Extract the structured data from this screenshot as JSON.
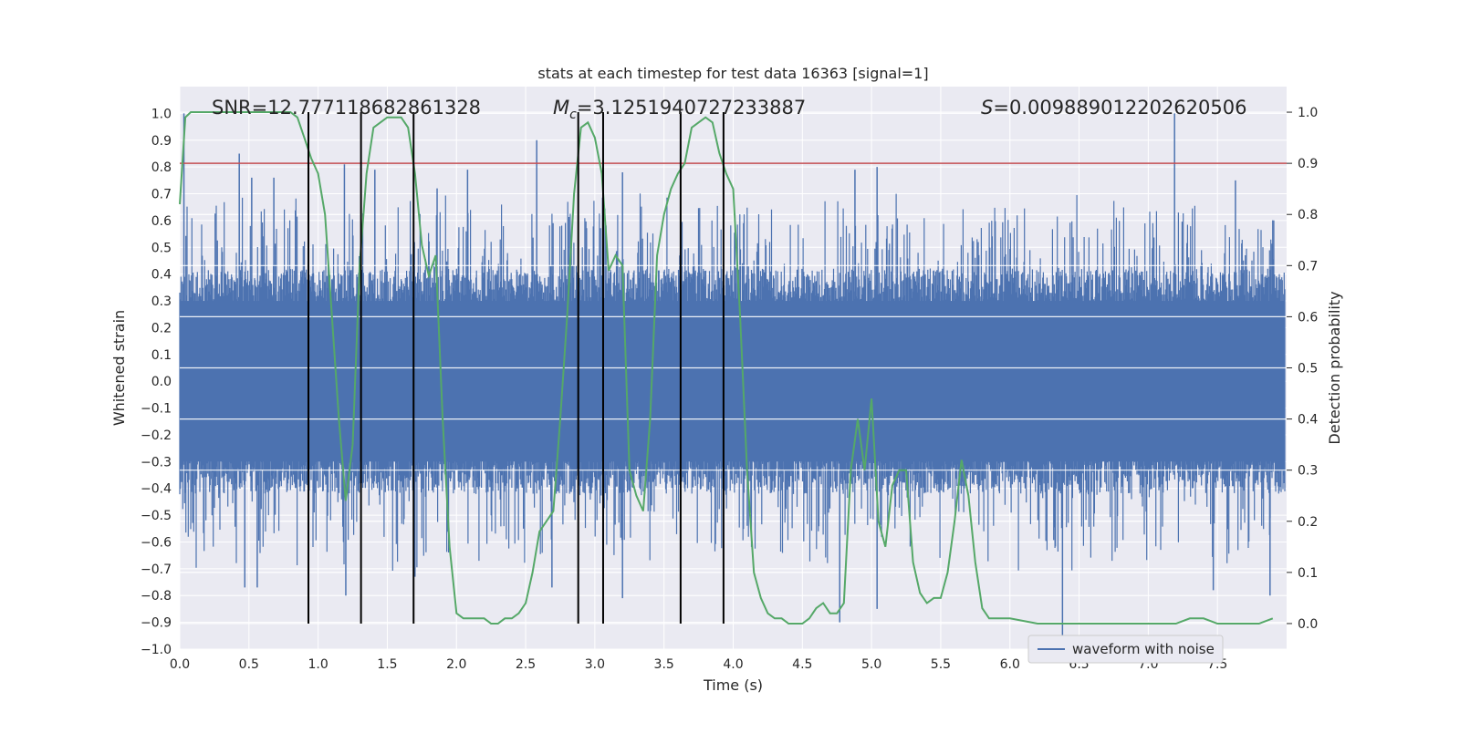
{
  "chart_data": {
    "type": "line",
    "title": "stats at each timestep for test data 16363 [signal=1]",
    "xlabel": "Time (s)",
    "ylabel": "Whitened strain",
    "y2label": "Detection probability",
    "xlim": [
      0.0,
      8.0
    ],
    "ylim": [
      -1.0,
      1.1
    ],
    "y2lim": [
      -0.05,
      1.05
    ],
    "x_ticks": [
      "0.0",
      "0.5",
      "1.0",
      "1.5",
      "2.0",
      "2.5",
      "3.0",
      "3.5",
      "4.0",
      "4.5",
      "5.0",
      "5.5",
      "6.0",
      "6.5",
      "7.0",
      "7.5"
    ],
    "y_ticks": [
      "−1.0",
      "−0.9",
      "−0.8",
      "−0.7",
      "−0.6",
      "−0.5",
      "−0.4",
      "−0.3",
      "−0.2",
      "−0.1",
      "0.0",
      "0.1",
      "0.2",
      "0.3",
      "0.4",
      "0.5",
      "0.6",
      "0.7",
      "0.8",
      "0.9",
      "1.0"
    ],
    "y2_ticks": [
      "0.0",
      "0.1",
      "0.2",
      "0.3",
      "0.4",
      "0.5",
      "0.6",
      "0.7",
      "0.8",
      "0.9",
      "1.0"
    ],
    "grid": true,
    "legend_placement": "lower-right",
    "stats": {
      "snr": "SNR=12.777118682861328",
      "mc": "=3.1251940727233887",
      "s": "=0.009889012202620506"
    },
    "threshold": 0.9,
    "vertical_lines_x": [
      0.93,
      1.31,
      1.69,
      2.88,
      3.06,
      3.62,
      3.93
    ],
    "series": [
      {
        "name": "waveform with noise",
        "color": "#4c72b0",
        "description_points": "noise band ~±0.35 with spikes",
        "spikes": [
          {
            "x": 0.03,
            "y": 1.0
          },
          {
            "x": 0.43,
            "y": 0.85
          },
          {
            "x": 0.52,
            "y": 0.76
          },
          {
            "x": 0.68,
            "y": 0.76
          },
          {
            "x": 1.19,
            "y": 0.81
          },
          {
            "x": 1.41,
            "y": 0.79
          },
          {
            "x": 1.86,
            "y": 0.72
          },
          {
            "x": 2.08,
            "y": 0.79
          },
          {
            "x": 2.58,
            "y": 0.9
          },
          {
            "x": 3.2,
            "y": 0.78
          },
          {
            "x": 4.88,
            "y": 0.79
          },
          {
            "x": 5.04,
            "y": 0.8
          },
          {
            "x": 7.19,
            "y": 1.0
          },
          {
            "x": 7.63,
            "y": 0.75
          },
          {
            "x": 0.47,
            "y": -0.77
          },
          {
            "x": 0.56,
            "y": -0.77
          },
          {
            "x": 1.2,
            "y": -0.8
          },
          {
            "x": 1.7,
            "y": -0.73
          },
          {
            "x": 2.69,
            "y": -0.77
          },
          {
            "x": 3.2,
            "y": -0.81
          },
          {
            "x": 4.77,
            "y": -0.9
          },
          {
            "x": 5.04,
            "y": -0.85
          },
          {
            "x": 6.38,
            "y": -1.0
          },
          {
            "x": 7.47,
            "y": -0.78
          },
          {
            "x": 7.88,
            "y": -0.8
          }
        ]
      },
      {
        "name": "",
        "color": "#55a868",
        "axis": "right",
        "x": [
          0.0,
          0.04,
          0.08,
          0.12,
          0.2,
          0.4,
          0.6,
          0.8,
          0.85,
          0.9,
          0.95,
          1.0,
          1.05,
          1.1,
          1.15,
          1.2,
          1.25,
          1.3,
          1.35,
          1.4,
          1.45,
          1.5,
          1.55,
          1.6,
          1.65,
          1.7,
          1.75,
          1.8,
          1.85,
          1.9,
          1.95,
          2.0,
          2.05,
          2.1,
          2.15,
          2.2,
          2.25,
          2.3,
          2.35,
          2.4,
          2.45,
          2.5,
          2.55,
          2.6,
          2.65,
          2.7,
          2.75,
          2.8,
          2.85,
          2.9,
          2.95,
          3.0,
          3.05,
          3.1,
          3.15,
          3.2,
          3.25,
          3.3,
          3.35,
          3.4,
          3.45,
          3.5,
          3.55,
          3.6,
          3.65,
          3.7,
          3.75,
          3.8,
          3.85,
          3.9,
          3.95,
          4.0,
          4.05,
          4.1,
          4.15,
          4.2,
          4.25,
          4.3,
          4.35,
          4.4,
          4.45,
          4.5,
          4.55,
          4.6,
          4.65,
          4.7,
          4.75,
          4.8,
          4.85,
          4.9,
          4.95,
          5.0,
          5.05,
          5.1,
          5.15,
          5.2,
          5.25,
          5.3,
          5.35,
          5.4,
          5.45,
          5.5,
          5.55,
          5.6,
          5.65,
          5.7,
          5.75,
          5.8,
          5.85,
          5.9,
          6.0,
          6.2,
          6.4,
          6.6,
          6.8,
          7.0,
          7.2,
          7.3,
          7.4,
          7.5,
          7.6,
          7.7,
          7.8,
          7.9
        ],
        "y": [
          0.82,
          0.99,
          1.0,
          1.0,
          1.0,
          1.0,
          1.0,
          1.0,
          0.99,
          0.95,
          0.91,
          0.88,
          0.8,
          0.6,
          0.4,
          0.24,
          0.35,
          0.7,
          0.88,
          0.97,
          0.98,
          0.99,
          0.99,
          0.99,
          0.97,
          0.88,
          0.74,
          0.68,
          0.72,
          0.4,
          0.15,
          0.02,
          0.01,
          0.01,
          0.01,
          0.01,
          0.0,
          0.0,
          0.01,
          0.01,
          0.02,
          0.04,
          0.1,
          0.18,
          0.2,
          0.22,
          0.4,
          0.6,
          0.84,
          0.97,
          0.98,
          0.95,
          0.88,
          0.69,
          0.72,
          0.7,
          0.3,
          0.25,
          0.22,
          0.4,
          0.72,
          0.8,
          0.85,
          0.88,
          0.9,
          0.97,
          0.98,
          0.99,
          0.98,
          0.92,
          0.88,
          0.85,
          0.6,
          0.3,
          0.1,
          0.05,
          0.02,
          0.01,
          0.01,
          0.0,
          0.0,
          0.0,
          0.01,
          0.03,
          0.04,
          0.02,
          0.02,
          0.04,
          0.3,
          0.4,
          0.3,
          0.44,
          0.2,
          0.15,
          0.27,
          0.3,
          0.3,
          0.12,
          0.06,
          0.04,
          0.05,
          0.05,
          0.1,
          0.2,
          0.32,
          0.25,
          0.12,
          0.03,
          0.01,
          0.01,
          0.01,
          0.0,
          0.0,
          0.0,
          0.0,
          0.0,
          0.0,
          0.01,
          0.01,
          0.0,
          0.0,
          0.0,
          0.0,
          0.01
        ]
      }
    ]
  },
  "legend": {
    "label": "waveform with noise"
  }
}
